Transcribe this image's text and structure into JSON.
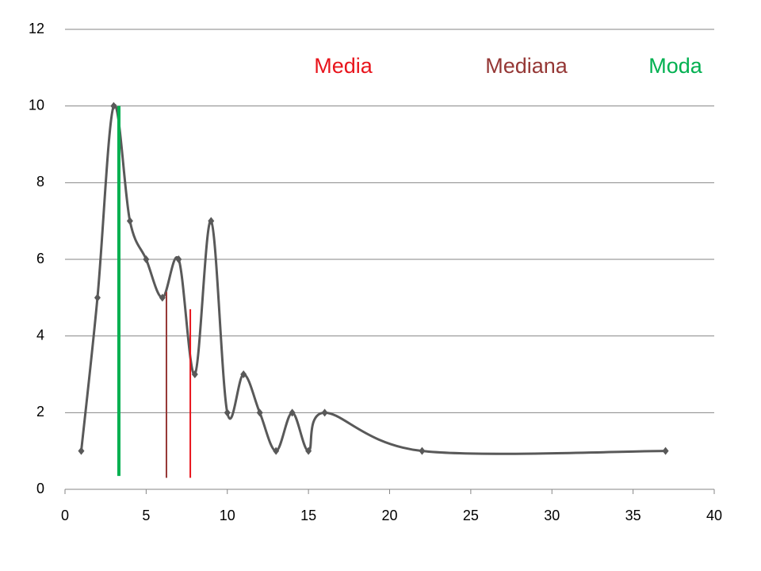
{
  "chart_data": {
    "type": "line",
    "series": [
      {
        "color": "#595959",
        "x": [
          1,
          2,
          3,
          4,
          5,
          6,
          7,
          8,
          9,
          10,
          11,
          12,
          13,
          14,
          15,
          16,
          22,
          37
        ],
        "values": [
          1,
          5,
          10,
          7,
          6,
          5,
          6,
          3,
          7,
          2,
          3,
          2,
          1,
          2,
          1,
          2,
          1,
          1
        ]
      }
    ],
    "smooth": true,
    "vlines": [
      {
        "name": "Media",
        "color": "#e8141c",
        "x": 7.72,
        "ymin": 0.3,
        "ymax": 4.7
      },
      {
        "name": "Mediana",
        "color": "#953735",
        "x": 6.25,
        "ymin": 0.3,
        "ymax": 5.15
      },
      {
        "name": "Moda",
        "color": "#00b050",
        "x": 3.32,
        "ymin": 0.35,
        "ymax": 10
      }
    ],
    "xlim": [
      0,
      40
    ],
    "xticks": [
      0,
      5,
      10,
      15,
      20,
      25,
      30,
      35,
      40
    ],
    "ylim": [
      0,
      12
    ],
    "yticks": [
      0,
      2,
      4,
      6,
      8,
      10,
      12
    ],
    "grid": true
  }
}
